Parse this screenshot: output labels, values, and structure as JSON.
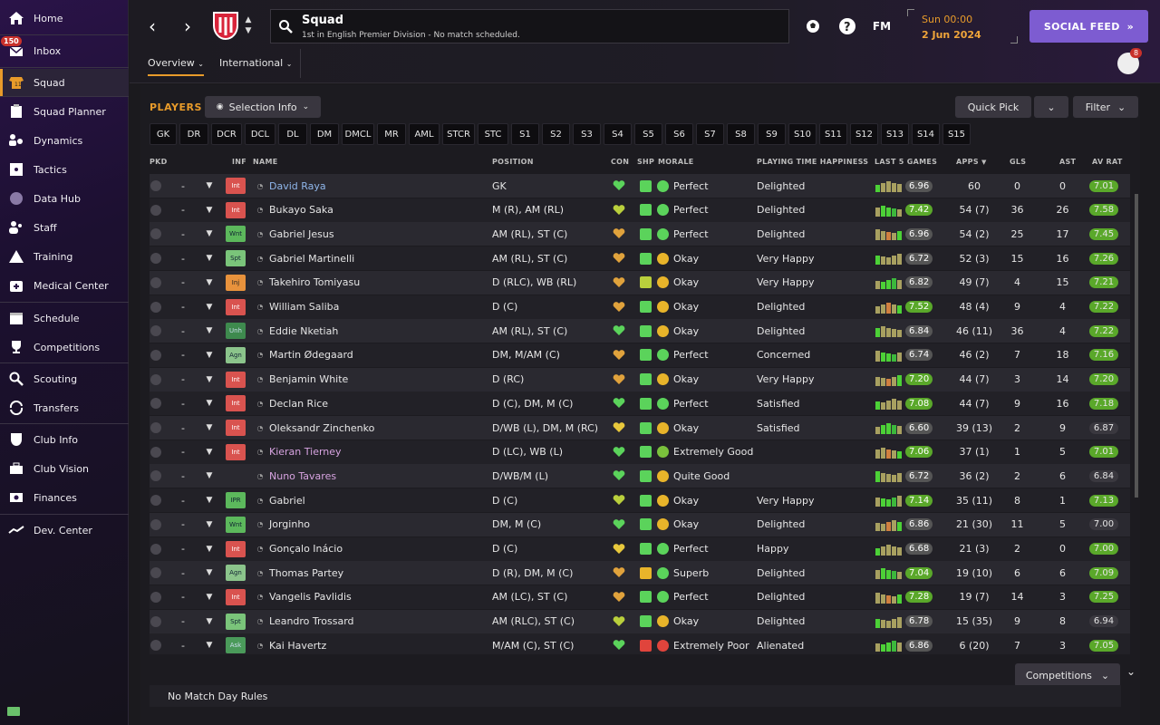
{
  "sidebar": {
    "items": [
      {
        "label": "Home",
        "icon": "home-icon"
      },
      {
        "label": "Inbox",
        "icon": "inbox-icon",
        "badge": "150"
      },
      {
        "label": "Squad",
        "icon": "squad-icon",
        "active": true
      },
      {
        "label": "Squad Planner",
        "icon": "clipboard-icon"
      },
      {
        "label": "Dynamics",
        "icon": "dynamics-icon"
      },
      {
        "label": "Tactics",
        "icon": "tactics-icon"
      },
      {
        "label": "Data Hub",
        "icon": "data-hub-icon"
      },
      {
        "label": "Staff",
        "icon": "staff-icon"
      },
      {
        "label": "Training",
        "icon": "training-icon"
      },
      {
        "label": "Medical Center",
        "icon": "medical-icon"
      },
      {
        "label": "Schedule",
        "icon": "calendar-icon"
      },
      {
        "label": "Competitions",
        "icon": "trophy-icon"
      },
      {
        "label": "Scouting",
        "icon": "scouting-icon"
      },
      {
        "label": "Transfers",
        "icon": "transfers-icon"
      },
      {
        "label": "Club Info",
        "icon": "shield-icon"
      },
      {
        "label": "Club Vision",
        "icon": "briefcase-icon"
      },
      {
        "label": "Finances",
        "icon": "finances-icon"
      },
      {
        "label": "Dev. Center",
        "icon": "dev-center-icon"
      }
    ]
  },
  "header": {
    "title": "Squad",
    "subtitle": "1st in English Premier Division - No match scheduled.",
    "fm_label": "FM",
    "date_line1": "Sun 00:00",
    "date_line2": "2 Jun 2024",
    "social_label": "SOCIAL FEED",
    "social_chevrons": "»",
    "avatar_badge": "8"
  },
  "tabs": {
    "overview": "Overview",
    "international": "International"
  },
  "players": {
    "title": "PLAYERS",
    "selection_info": "Selection Info",
    "quick_pick": "Quick Pick",
    "filter": "Filter"
  },
  "positions": [
    "GK",
    "DR",
    "DCR",
    "DCL",
    "DL",
    "DM",
    "DMCL",
    "MR",
    "AML",
    "STCR",
    "STC",
    "S1",
    "S2",
    "S3",
    "S4",
    "S5",
    "S6",
    "S7",
    "S8",
    "S9",
    "S10",
    "S11",
    "S12",
    "S13",
    "S14",
    "S15"
  ],
  "columns": {
    "pkd": "PKD",
    "inf": "INF",
    "name": "NAME",
    "position": "POSITION",
    "con": "CON",
    "shp": "SHP",
    "morale": "MORALE",
    "pth": "PLAYING TIME HAPPINESS",
    "last5": "LAST 5 GAMES",
    "apps": "APPS",
    "gls": "GLS",
    "ast": "AST",
    "avrat": "AV RAT"
  },
  "rows": [
    {
      "dash": "-",
      "inf": "Int",
      "name": "David Raya",
      "name_color": "blue",
      "pos": "GK",
      "con": "#5bd35b",
      "shp": "#5bd35b",
      "morale_icon": "#5bd35b",
      "morale": "Perfect",
      "pth": "Delighted",
      "l5": "6.96",
      "l5c": "#555",
      "apps": "60",
      "gls": "0",
      "ast": "0",
      "av": "7.01",
      "avc": "#5aa82a"
    },
    {
      "dash": "-",
      "inf": "Int",
      "name": "Bukayo Saka",
      "name_color": "",
      "pos": "M (R), AM (RL)",
      "con": "#b9cf3c",
      "shp": "#5bd35b",
      "morale_icon": "#5bd35b",
      "morale": "Perfect",
      "pth": "Delighted",
      "l5": "7.42",
      "l5c": "#5aa82a",
      "apps": "54 (7)",
      "gls": "36",
      "ast": "26",
      "av": "7.58",
      "avc": "#5aa82a"
    },
    {
      "dash": "-",
      "inf": "Wnt",
      "name": "Gabriel Jesus",
      "name_color": "",
      "pos": "AM (RL), ST (C)",
      "con": "#e0a23c",
      "shp": "#5bd35b",
      "morale_icon": "#5bd35b",
      "morale": "Perfect",
      "pth": "Delighted",
      "l5": "6.96",
      "l5c": "#555",
      "apps": "54 (2)",
      "gls": "25",
      "ast": "17",
      "av": "7.45",
      "avc": "#5aa82a"
    },
    {
      "dash": "-",
      "inf": "Spt",
      "name": "Gabriel Martinelli",
      "name_color": "",
      "pos": "AM (RL), ST (C)",
      "con": "#e0a23c",
      "shp": "#5bd35b",
      "morale_icon": "#e8b42a",
      "morale": "Okay",
      "pth": "Very Happy",
      "l5": "6.72",
      "l5c": "#555",
      "apps": "52 (3)",
      "gls": "15",
      "ast": "16",
      "av": "7.26",
      "avc": "#5aa82a"
    },
    {
      "dash": "-",
      "inf": "Inj",
      "name": "Takehiro Tomiyasu",
      "name_color": "",
      "pos": "D (RLC), WB (RL)",
      "con": "#e0a23c",
      "shp": "#b9cf3c",
      "morale_icon": "#e8b42a",
      "morale": "Okay",
      "pth": "Very Happy",
      "l5": "6.82",
      "l5c": "#555",
      "apps": "49 (7)",
      "gls": "4",
      "ast": "15",
      "av": "7.21",
      "avc": "#5aa82a"
    },
    {
      "dash": "-",
      "inf": "Int",
      "name": "William Saliba",
      "name_color": "",
      "pos": "D (C)",
      "con": "#e0a23c",
      "shp": "#5bd35b",
      "morale_icon": "#e8b42a",
      "morale": "Okay",
      "pth": "Delighted",
      "l5": "7.52",
      "l5c": "#5aa82a",
      "apps": "48 (4)",
      "gls": "9",
      "ast": "4",
      "av": "7.22",
      "avc": "#5aa82a"
    },
    {
      "dash": "-",
      "inf": "Unh",
      "name": "Eddie Nketiah",
      "name_color": "",
      "pos": "AM (RL), ST (C)",
      "con": "#5bd35b",
      "shp": "#5bd35b",
      "morale_icon": "#e8b42a",
      "morale": "Okay",
      "pth": "Delighted",
      "l5": "6.84",
      "l5c": "#555",
      "apps": "46 (11)",
      "gls": "36",
      "ast": "4",
      "av": "7.22",
      "avc": "#5aa82a"
    },
    {
      "dash": "-",
      "inf": "Agn",
      "name": "Martin Ødegaard",
      "name_color": "",
      "pos": "DM, M/AM (C)",
      "con": "#e0a23c",
      "shp": "#5bd35b",
      "morale_icon": "#5bd35b",
      "morale": "Perfect",
      "pth": "Concerned",
      "l5": "6.74",
      "l5c": "#555",
      "apps": "46 (2)",
      "gls": "7",
      "ast": "18",
      "av": "7.16",
      "avc": "#5aa82a"
    },
    {
      "dash": "-",
      "inf": "Int",
      "name": "Benjamin White",
      "name_color": "",
      "pos": "D (RC)",
      "con": "#e0a23c",
      "shp": "#5bd35b",
      "morale_icon": "#e8b42a",
      "morale": "Okay",
      "pth": "Very Happy",
      "l5": "7.20",
      "l5c": "#5aa82a",
      "apps": "44 (7)",
      "gls": "3",
      "ast": "14",
      "av": "7.20",
      "avc": "#5aa82a"
    },
    {
      "dash": "-",
      "inf": "Int",
      "name": "Declan Rice",
      "name_color": "",
      "pos": "D (C), DM, M (C)",
      "con": "#5bd35b",
      "shp": "#5bd35b",
      "morale_icon": "#5bd35b",
      "morale": "Perfect",
      "pth": "Satisfied",
      "l5": "7.08",
      "l5c": "#5aa82a",
      "apps": "44 (7)",
      "gls": "9",
      "ast": "16",
      "av": "7.18",
      "avc": "#5aa82a"
    },
    {
      "dash": "-",
      "inf": "Int",
      "name": "Oleksandr Zinchenko",
      "name_color": "",
      "pos": "D/WB (L), DM, M (RC)",
      "con": "#e8c83c",
      "shp": "#5bd35b",
      "morale_icon": "#e8b42a",
      "morale": "Okay",
      "pth": "Satisfied",
      "l5": "6.60",
      "l5c": "#555",
      "apps": "39 (13)",
      "gls": "2",
      "ast": "9",
      "av": "6.87",
      "avc": "#3a383f"
    },
    {
      "dash": "-",
      "inf": "Int",
      "name": "Kieran Tierney",
      "name_color": "pink",
      "pos": "D (LC), WB (L)",
      "con": "#5bd35b",
      "shp": "#5bd35b",
      "morale_icon": "#7ac13c",
      "morale": "Extremely Good",
      "pth": "",
      "l5": "7.06",
      "l5c": "#5aa82a",
      "apps": "37 (1)",
      "gls": "1",
      "ast": "5",
      "av": "7.01",
      "avc": "#5aa82a"
    },
    {
      "dash": "-",
      "inf": "",
      "name": "Nuno Tavares",
      "name_color": "pink",
      "pos": "D/WB/M (L)",
      "con": "#5bd35b",
      "shp": "#5bd35b",
      "morale_icon": "#e8b42a",
      "morale": "Quite Good",
      "pth": "",
      "l5": "6.72",
      "l5c": "#555",
      "apps": "36 (2)",
      "gls": "2",
      "ast": "6",
      "av": "6.84",
      "avc": "#3a383f"
    },
    {
      "dash": "-",
      "inf": "IPR",
      "name": "Gabriel",
      "name_color": "",
      "pos": "D (C)",
      "con": "#b9cf3c",
      "shp": "#5bd35b",
      "morale_icon": "#e8b42a",
      "morale": "Okay",
      "pth": "Very Happy",
      "l5": "7.14",
      "l5c": "#5aa82a",
      "apps": "35 (11)",
      "gls": "8",
      "ast": "1",
      "av": "7.13",
      "avc": "#5aa82a"
    },
    {
      "dash": "-",
      "inf": "Wnt",
      "name": "Jorginho",
      "name_color": "",
      "pos": "DM, M (C)",
      "con": "#5bd35b",
      "shp": "#5bd35b",
      "morale_icon": "#e8b42a",
      "morale": "Okay",
      "pth": "Delighted",
      "l5": "6.86",
      "l5c": "#555",
      "apps": "21 (30)",
      "gls": "11",
      "ast": "5",
      "av": "7.00",
      "avc": "#3a383f"
    },
    {
      "dash": "-",
      "inf": "Int",
      "name": "Gonçalo Inácio",
      "name_color": "",
      "pos": "D (C)",
      "con": "#e8c83c",
      "shp": "#5bd35b",
      "morale_icon": "#5bd35b",
      "morale": "Perfect",
      "pth": "Happy",
      "l5": "6.68",
      "l5c": "#555",
      "apps": "21 (3)",
      "gls": "2",
      "ast": "0",
      "av": "7.00",
      "avc": "#5aa82a"
    },
    {
      "dash": "-",
      "inf": "Agn",
      "name": "Thomas Partey",
      "name_color": "",
      "pos": "D (R), DM, M (C)",
      "con": "#e0a23c",
      "shp": "#e8b42a",
      "morale_icon": "#5bd35b",
      "morale": "Superb",
      "pth": "Delighted",
      "l5": "7.04",
      "l5c": "#5aa82a",
      "apps": "19 (10)",
      "gls": "6",
      "ast": "6",
      "av": "7.09",
      "avc": "#5aa82a"
    },
    {
      "dash": "-",
      "inf": "Int",
      "name": "Vangelis Pavlidis",
      "name_color": "",
      "pos": "AM (LC), ST (C)",
      "con": "#e0a23c",
      "shp": "#5bd35b",
      "morale_icon": "#5bd35b",
      "morale": "Perfect",
      "pth": "Delighted",
      "l5": "7.28",
      "l5c": "#5aa82a",
      "apps": "19 (7)",
      "gls": "14",
      "ast": "3",
      "av": "7.25",
      "avc": "#5aa82a"
    },
    {
      "dash": "-",
      "inf": "Spt",
      "name": "Leandro Trossard",
      "name_color": "",
      "pos": "AM (RLC), ST (C)",
      "con": "#b9cf3c",
      "shp": "#5bd35b",
      "morale_icon": "#e8b42a",
      "morale": "Okay",
      "pth": "Delighted",
      "l5": "6.78",
      "l5c": "#555",
      "apps": "15 (35)",
      "gls": "9",
      "ast": "8",
      "av": "6.94",
      "avc": "#3a383f"
    },
    {
      "dash": "-",
      "inf": "Ask",
      "name": "Kai Havertz",
      "name_color": "",
      "pos": "M/AM (C), ST (C)",
      "con": "#5bd35b",
      "shp": "#e0443c",
      "morale_icon": "#e0443c",
      "morale": "Extremely Poor",
      "pth": "Alienated",
      "l5": "6.86",
      "l5c": "#555",
      "apps": "6 (20)",
      "gls": "7",
      "ast": "3",
      "av": "7.05",
      "avc": "#5aa82a"
    }
  ],
  "footer": {
    "competitions": "Competitions",
    "match_day_rules": "No Match Day Rules"
  },
  "colors": {
    "accent": "#e89b2a",
    "social": "#7d5cd1",
    "inf_int": "#d9534f",
    "inf_wnt": "#5cb85c",
    "inf_inj": "#e8923c"
  }
}
